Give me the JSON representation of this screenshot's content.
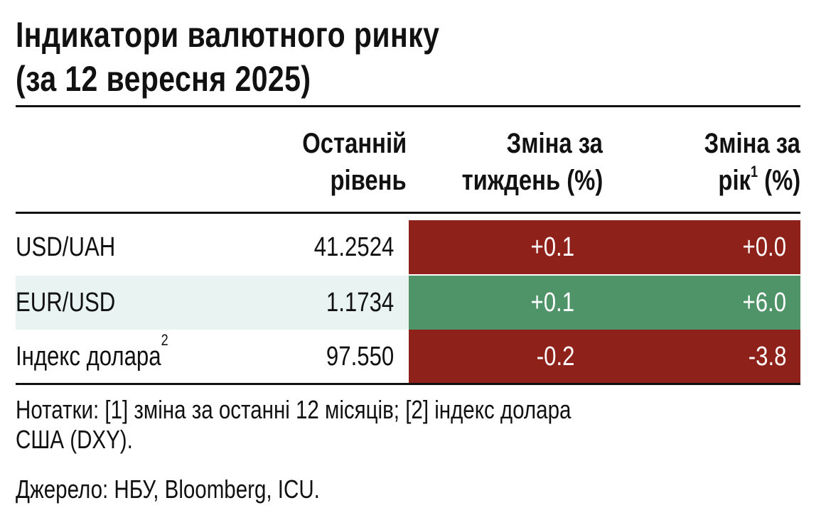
{
  "title": {
    "line1": "Індикатори валютного ринку",
    "line2": "(за 12 вересня 2025)"
  },
  "table": {
    "headers": {
      "last": [
        "Останній",
        "рівень"
      ],
      "week": [
        "Зміна за",
        "тиждень (%)"
      ],
      "year_line1": "Зміна за",
      "year_line2_a": "рік",
      "year_line2_sup": "1",
      "year_line2_b": " (%)"
    },
    "rows": [
      {
        "name": "USD/UAH",
        "name_sup": "",
        "last": "41.2524",
        "week": "+0.1",
        "year": "+0.0",
        "week_color": "#8e2119",
        "year_color": "#8e2119"
      },
      {
        "name": "EUR/USD",
        "name_sup": "",
        "last": "1.1734",
        "week": "+0.1",
        "year": "+6.0",
        "week_color": "#4f9368",
        "year_color": "#4f9368"
      },
      {
        "name": "Індекс долара",
        "name_sup": "2",
        "last": "97.550",
        "week": "-0.2",
        "year": "-3.8",
        "week_color": "#8e2119",
        "year_color": "#8e2119"
      }
    ]
  },
  "notes": {
    "line1": "Нотатки: [1] зміна за останні 12 місяців; [2] індекс долара",
    "line2": "США (DXY)."
  },
  "source": "Джерело: НБУ, Bloomberg, ICU."
}
